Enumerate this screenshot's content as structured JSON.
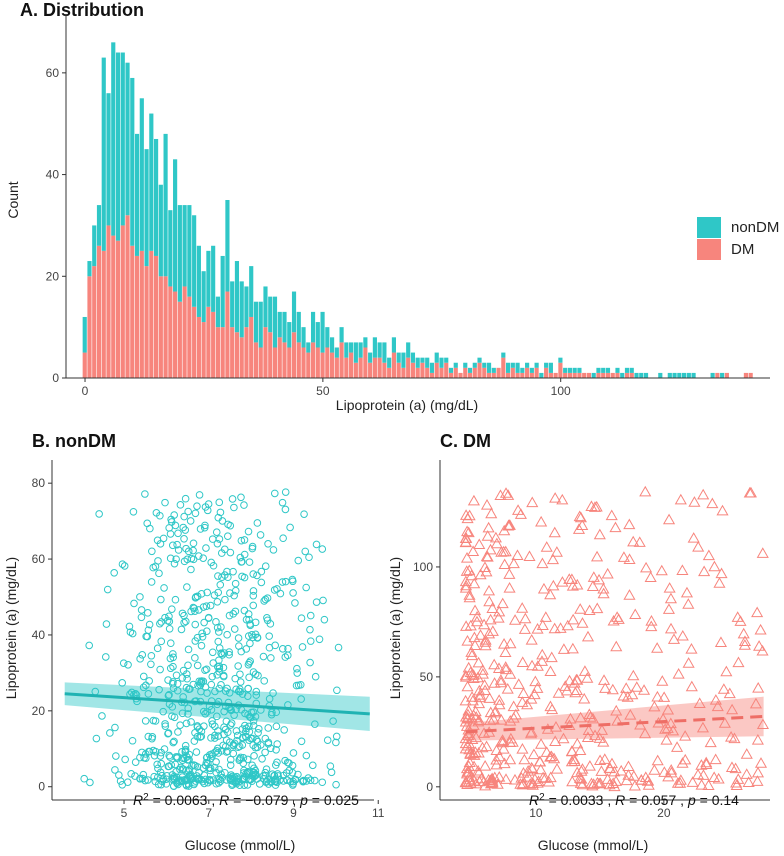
{
  "colors": {
    "nonDM": "#2fc7c7",
    "DM": "#f7857d",
    "nonDM_line": "#1fb3b3",
    "DM_line": "#ee6e66"
  },
  "chart_data": [
    {
      "type": "bar",
      "subtype": "stacked-histogram",
      "title": "A. Distribution",
      "xlabel": "Lipoprotein (a) (mg/dL)",
      "ylabel": "Count",
      "xlim": [
        -4,
        144
      ],
      "ylim": [
        0,
        70
      ],
      "xticks": [
        0,
        50,
        100
      ],
      "yticks": [
        0,
        20,
        40,
        60
      ],
      "bin_width": 1,
      "bins_start": 0,
      "legend": {
        "position": "right",
        "entries": [
          "nonDM",
          "DM"
        ]
      },
      "series": [
        {
          "name": "DM",
          "values": [
            5,
            20,
            22,
            26,
            25,
            30,
            28,
            27,
            30,
            32,
            26,
            24,
            25,
            22,
            25,
            24,
            20,
            20,
            18,
            17,
            15,
            18,
            16,
            14,
            12,
            11,
            14,
            13,
            10,
            10,
            17,
            10,
            9,
            8,
            10,
            12,
            7,
            6,
            10,
            9,
            6,
            8,
            7,
            6,
            9,
            7,
            6,
            5,
            7,
            6,
            5,
            6,
            5,
            4,
            7,
            4,
            5,
            3,
            4,
            6,
            3,
            4,
            4,
            3,
            2,
            5,
            3,
            2,
            4,
            3,
            2,
            3,
            2,
            1,
            3,
            2,
            3,
            1,
            2,
            1,
            2,
            1,
            2,
            3,
            2,
            1,
            1,
            2,
            4,
            1,
            2,
            1,
            1,
            2,
            1,
            2,
            0,
            2,
            1,
            1,
            3,
            1,
            1,
            1,
            1,
            1,
            1,
            0,
            1,
            1,
            1,
            1,
            1,
            0,
            1,
            1,
            0,
            0,
            0,
            0,
            0,
            0,
            0,
            0,
            0,
            0,
            0,
            0,
            0,
            0,
            0,
            0,
            0,
            1,
            0,
            1,
            0,
            0,
            0,
            1,
            1
          ]
        },
        {
          "name": "nonDM",
          "values": [
            7,
            3,
            8,
            8,
            38,
            26,
            38,
            37,
            34,
            30,
            33,
            24,
            30,
            23,
            27,
            23,
            18,
            28,
            15,
            26,
            19,
            16,
            18,
            18,
            14,
            10,
            11,
            13,
            6,
            14,
            18,
            9,
            14,
            11,
            8,
            10,
            8,
            9,
            8,
            7,
            10,
            5,
            6,
            5,
            8,
            6,
            4,
            2,
            6,
            5,
            8,
            4,
            3,
            2,
            3,
            3,
            2,
            4,
            3,
            2,
            2,
            4,
            3,
            4,
            2,
            3,
            2,
            3,
            3,
            2,
            2,
            1,
            2,
            2,
            2,
            2,
            1,
            1,
            1,
            0,
            1,
            1,
            1,
            1,
            1,
            2,
            1,
            0,
            1,
            2,
            1,
            2,
            1,
            1,
            1,
            1,
            1,
            1,
            2,
            0,
            1,
            1,
            1,
            1,
            1,
            0,
            0,
            1,
            1,
            1,
            1,
            0,
            1,
            1,
            1,
            1,
            1,
            1,
            1,
            0,
            0,
            1,
            0,
            1,
            1,
            1,
            1,
            1,
            1,
            0,
            0,
            0,
            1,
            0,
            1,
            0,
            0,
            0,
            0,
            0,
            0
          ]
        }
      ]
    },
    {
      "type": "scatter",
      "title": "B. nonDM",
      "xlabel": "Glucose (mmol/L)",
      "ylabel": "Lipoprotein (a) (mg/dL)",
      "xlim": [
        3.3,
        10.9
      ],
      "ylim": [
        -3.5,
        84
      ],
      "xticks": [
        5,
        7,
        9,
        11
      ],
      "yticks": [
        0,
        20,
        40,
        60,
        80
      ],
      "marker": "circle",
      "n_points": 800,
      "x_range": [
        3.6,
        10.8
      ],
      "regression": {
        "x": [
          3.6,
          10.8
        ],
        "y": [
          24.5,
          19.2
        ],
        "ci_halfwidth": [
          3.0,
          4.5
        ]
      },
      "stats": {
        "r2_label": "R",
        "r2_value": " = 0.0063 , ",
        "r_label": "R",
        "r_value": " = −0.079 , ",
        "p_label": "p",
        "p_value": " = 0.025"
      }
    },
    {
      "type": "scatter",
      "title": "C. DM",
      "xlabel": "Glucose (mmol/L)",
      "ylabel": "Lipoprotein (a) (mg/dL)",
      "xlim": [
        2.5,
        28.3
      ],
      "ylim": [
        -6,
        145
      ],
      "xticks": [
        10,
        20
      ],
      "yticks": [
        0,
        50,
        100
      ],
      "marker": "triangle",
      "n_points": 520,
      "x_range": [
        4.5,
        27.8
      ],
      "regression": {
        "x": [
          4.5,
          27.8
        ],
        "y": [
          25,
          32
        ],
        "ci_halfwidth": [
          4.0,
          9.0
        ]
      },
      "stats": {
        "r2_label": "R",
        "r2_value": " = 0.0033 , ",
        "r_label": "R",
        "r_value": " = 0.057 , ",
        "p_label": "p",
        "p_value": " = 0.14"
      }
    }
  ]
}
